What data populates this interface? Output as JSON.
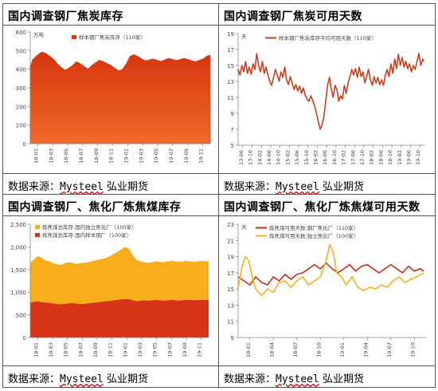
{
  "panels": [
    {
      "title": "国内调查钢厂焦炭库存",
      "source_prefix": "数据来源：",
      "source_brand": "Mysteel",
      "source_suffix": "弘业期货"
    },
    {
      "title": "国内调查钢厂焦炭可用天数",
      "source_prefix": "数据来源：",
      "source_brand": "Mysteel",
      "source_suffix": "弘业期货"
    },
    {
      "title": "国内调查钢厂、焦化厂炼焦煤库存",
      "source_prefix": "数据来源：",
      "source_brand": "Mysteel",
      "source_suffix": "弘业期货"
    },
    {
      "title": "国内调查钢厂、焦化厂炼焦煤可用天数",
      "source_prefix": "数据来源：",
      "source_brand": "Mysteel",
      "source_suffix": "弘业期货"
    }
  ],
  "colors": {
    "coke_fill": "#d8350e",
    "coke_fill_top": "#ee6b2a",
    "coke_line": "#c8401e",
    "coal_yellow": "#f8ad1c",
    "coal_red": "#d73417",
    "coal_days_red": "#c0341c",
    "coal_days_yellow": "#f5b021",
    "axis": "#888888"
  },
  "chart_data": [
    {
      "type": "area",
      "ylabel": "万吨",
      "ylim": [
        0,
        600
      ],
      "yticks": [
        0,
        100,
        200,
        300,
        400,
        500,
        600
      ],
      "xticks": [
        "18-01",
        "18-03",
        "18-05",
        "18-07",
        "18-09",
        "18-11",
        "19-01",
        "19-03",
        "19-05",
        "19-07",
        "19-09",
        "19-11"
      ],
      "series": [
        {
          "name": "样本钢厂焦炭库存（110家）",
          "x": [
            0,
            0.3,
            0.6,
            1.0,
            1.5,
            2.0,
            2.5,
            3.0,
            3.5,
            4.0,
            4.5,
            5.0,
            5.5,
            6.0,
            6.5,
            7.0,
            7.5,
            8.0,
            8.5,
            9.0,
            9.5,
            10.0,
            10.5,
            11.0,
            11.5,
            12.0,
            12.5,
            13.0,
            13.5,
            14.0,
            14.5,
            15.0,
            15.5,
            16.0,
            16.5,
            17.0,
            17.5,
            18.0,
            18.5,
            19.0,
            19.5,
            20.0,
            20.5,
            21.0,
            21.5,
            22.0,
            22.5,
            23.0,
            23.4
          ],
          "values": [
            410,
            450,
            462,
            478,
            492,
            485,
            470,
            455,
            430,
            410,
            395,
            405,
            420,
            440,
            430,
            415,
            400,
            420,
            435,
            448,
            440,
            430,
            420,
            405,
            390,
            400,
            430,
            470,
            478,
            468,
            455,
            445,
            450,
            455,
            448,
            442,
            450,
            458,
            452,
            446,
            452,
            458,
            452,
            445,
            440,
            448,
            455,
            470,
            475
          ]
        }
      ]
    },
    {
      "type": "line",
      "ylabel": "天",
      "ylim": [
        5,
        19
      ],
      "yticks": [
        5,
        7,
        9,
        11,
        13,
        15,
        17,
        19
      ],
      "xticks": [
        "13-06",
        "13-10",
        "14-02",
        "14-06",
        "14-10",
        "15-02",
        "15-06",
        "15-10",
        "16-02",
        "16-06",
        "16-10",
        "17-02",
        "17-06",
        "17-10",
        "18-02",
        "18-06",
        "18-10",
        "19-02",
        "19-06",
        "19-10"
      ],
      "series": [
        {
          "name": "样本钢厂焦炭库存平均可用天数（110家）",
          "x": [
            0,
            0.2,
            0.4,
            0.6,
            0.8,
            1.0,
            1.2,
            1.4,
            1.6,
            1.8,
            2.0,
            2.2,
            2.4,
            2.6,
            2.8,
            3.0,
            3.2,
            3.4,
            3.6,
            3.8,
            4.0,
            4.2,
            4.4,
            4.6,
            4.8,
            5.0,
            5.2,
            5.4,
            5.6,
            5.8,
            6.0,
            6.2,
            6.4,
            6.6,
            6.8,
            7.0,
            7.2,
            7.4,
            7.6,
            7.8,
            8.0,
            8.2,
            8.4,
            8.6,
            8.8,
            9.0,
            9.2,
            9.4,
            9.6,
            9.8,
            10.0,
            10.2,
            10.4,
            10.6,
            10.8,
            11.0,
            11.2,
            11.4,
            11.6,
            11.8,
            12.0,
            12.2,
            12.4,
            12.6,
            12.8,
            13.0,
            13.2,
            13.4,
            13.6,
            13.8,
            14.0,
            14.2,
            14.4,
            14.6,
            14.8,
            15.0,
            15.2,
            15.4,
            15.6,
            15.8,
            16.0,
            16.2,
            16.4,
            16.6,
            16.8,
            17.0,
            17.2,
            17.4,
            17.6,
            17.8,
            18.0,
            18.2,
            18.4,
            18.6,
            18.8,
            19.0,
            19.2,
            19.4,
            19.6,
            19.8,
            19.95
          ],
          "values": [
            14.5,
            13.8,
            15.0,
            14.2,
            15.5,
            14.0,
            14.8,
            13.9,
            15.2,
            14.5,
            16.5,
            15.0,
            14.2,
            15.5,
            14.0,
            14.8,
            13.8,
            13.0,
            12.5,
            13.5,
            14.5,
            13.8,
            13.0,
            14.2,
            13.5,
            14.8,
            13.2,
            12.6,
            13.6,
            12.8,
            12.0,
            12.6,
            11.8,
            12.4,
            11.5,
            12.2,
            11.3,
            10.8,
            10.5,
            11.2,
            10.6,
            10.0,
            9.0,
            8.0,
            7.0,
            7.5,
            8.5,
            10.5,
            12.5,
            13.5,
            12.0,
            11.0,
            12.5,
            12.0,
            10.5,
            11.2,
            10.8,
            12.5,
            11.5,
            12.8,
            13.6,
            14.5,
            13.8,
            14.6,
            13.5,
            14.8,
            13.6,
            14.2,
            12.8,
            13.6,
            14.5,
            13.2,
            12.5,
            13.6,
            12.8,
            13.5,
            12.6,
            13.2,
            12.5,
            13.8,
            14.5,
            13.6,
            15.2,
            14.0,
            15.8,
            14.6,
            16.4,
            15.0,
            16.0,
            14.8,
            15.5,
            14.6,
            15.2,
            14.2,
            15.0,
            14.5,
            15.5,
            16.5,
            15.0,
            15.8,
            15.5
          ]
        }
      ]
    },
    {
      "type": "area",
      "ylabel": "",
      "ylim": [
        0,
        2500
      ],
      "yticks": [
        0,
        500,
        1000,
        1500,
        2000,
        2500
      ],
      "xticks": [
        "18-01",
        "18-03",
        "18-05",
        "18-07",
        "18-09",
        "18-11",
        "19-01",
        "19-03",
        "19-05",
        "19-07",
        "19-09",
        "19-11"
      ],
      "series": [
        {
          "name": "炼焦煤总库存:国内独立焦化厂（100家）",
          "x": [
            0,
            0.5,
            1.0,
            1.5,
            2.0,
            2.5,
            3.0,
            3.5,
            4.0,
            4.5,
            5.0,
            5.5,
            6.0,
            6.5,
            7.0,
            7.5,
            8.0,
            8.5,
            9.0,
            9.5,
            10.0,
            10.5,
            11.0,
            11.5,
            12.0,
            12.5,
            13.0,
            13.5,
            14.0,
            14.5,
            15.0,
            15.5,
            16.0,
            16.5,
            17.0,
            17.5,
            18.0,
            18.5,
            19.0,
            19.5,
            20.0,
            20.5,
            21.0,
            21.5,
            22.0,
            22.5,
            23.0,
            23.4
          ],
          "values": [
            1650,
            1720,
            1800,
            1760,
            1700,
            1680,
            1640,
            1620,
            1600,
            1640,
            1660,
            1650,
            1620,
            1640,
            1650,
            1660,
            1680,
            1700,
            1720,
            1740,
            1760,
            1800,
            1850,
            1900,
            1950,
            2000,
            1950,
            1800,
            1700,
            1680,
            1660,
            1650,
            1660,
            1680,
            1670,
            1660,
            1680,
            1690,
            1680,
            1670,
            1680,
            1690,
            1680,
            1670,
            1680,
            1690,
            1680,
            1690
          ]
        },
        {
          "name": "炼焦煤总库存:国内样本钢厂（100家）",
          "x": [
            0,
            0.5,
            1.0,
            1.5,
            2.0,
            2.5,
            3.0,
            3.5,
            4.0,
            4.5,
            5.0,
            5.5,
            6.0,
            6.5,
            7.0,
            7.5,
            8.0,
            8.5,
            9.0,
            9.5,
            10.0,
            10.5,
            11.0,
            11.5,
            12.0,
            12.5,
            13.0,
            13.5,
            14.0,
            14.5,
            15.0,
            15.5,
            16.0,
            16.5,
            17.0,
            17.5,
            18.0,
            18.5,
            19.0,
            19.5,
            20.0,
            20.5,
            21.0,
            21.5,
            22.0,
            22.5,
            23.0,
            23.4
          ],
          "values": [
            760,
            790,
            800,
            780,
            770,
            760,
            750,
            740,
            730,
            740,
            750,
            760,
            750,
            740,
            740,
            750,
            760,
            770,
            780,
            790,
            800,
            810,
            820,
            830,
            840,
            850,
            840,
            820,
            800,
            810,
            820,
            810,
            820,
            830,
            820,
            810,
            820,
            830,
            820,
            815,
            820,
            830,
            825,
            820,
            825,
            830,
            825,
            830
          ]
        }
      ]
    },
    {
      "type": "line",
      "ylabel": "天",
      "ylim": [
        9,
        23
      ],
      "yticks": [
        9,
        11,
        13,
        15,
        17,
        19,
        21,
        23
      ],
      "xticks": [
        "18-01",
        "18-04",
        "18-07",
        "18-10",
        "19-01",
        "19-04",
        "19-07",
        "19-10"
      ],
      "series": [
        {
          "name": "炼焦煤可用天数:钢厂焦化厂（110家）",
          "x": [
            0,
            0.25,
            0.5,
            0.75,
            1.0,
            1.25,
            1.5,
            1.75,
            2.0,
            2.25,
            2.5,
            2.75,
            3.0,
            3.25,
            3.5,
            3.75,
            4.0,
            4.25,
            4.5,
            4.75,
            5.0,
            5.25,
            5.5,
            5.75,
            6.0,
            6.25,
            6.5,
            6.75,
            7.0,
            7.25,
            7.5,
            7.75,
            7.9
          ],
          "values": [
            16.5,
            16.0,
            15.5,
            16.5,
            15.8,
            15.5,
            16.5,
            16.0,
            16.8,
            16.2,
            16.8,
            17.0,
            17.5,
            18.0,
            17.5,
            18.2,
            17.5,
            17.0,
            17.5,
            18.0,
            17.2,
            17.8,
            18.0,
            17.5,
            17.0,
            17.5,
            18.0,
            17.5,
            17.0,
            17.8,
            17.2,
            17.5,
            17.2
          ]
        },
        {
          "name": "炼焦煤可用天数:独立焦化厂（100家）",
          "x": [
            0,
            0.15,
            0.3,
            0.45,
            0.6,
            0.75,
            1.0,
            1.25,
            1.5,
            1.75,
            2.0,
            2.25,
            2.5,
            2.75,
            3.0,
            3.25,
            3.5,
            3.75,
            3.9,
            4.05,
            4.2,
            4.4,
            4.6,
            4.85,
            5.1,
            5.35,
            5.6,
            5.85,
            6.1,
            6.35,
            6.6,
            6.85,
            7.1,
            7.35,
            7.6,
            7.9
          ],
          "values": [
            15.0,
            17.5,
            19.0,
            18.5,
            16.5,
            15.0,
            14.2,
            15.0,
            14.6,
            15.8,
            16.0,
            15.2,
            16.0,
            16.5,
            15.5,
            16.0,
            16.5,
            18.5,
            20.5,
            19.5,
            17.0,
            16.5,
            15.5,
            16.5,
            15.2,
            14.8,
            15.2,
            15.0,
            15.5,
            15.2,
            16.0,
            16.5,
            15.8,
            16.2,
            16.5,
            17.0
          ]
        }
      ]
    }
  ]
}
